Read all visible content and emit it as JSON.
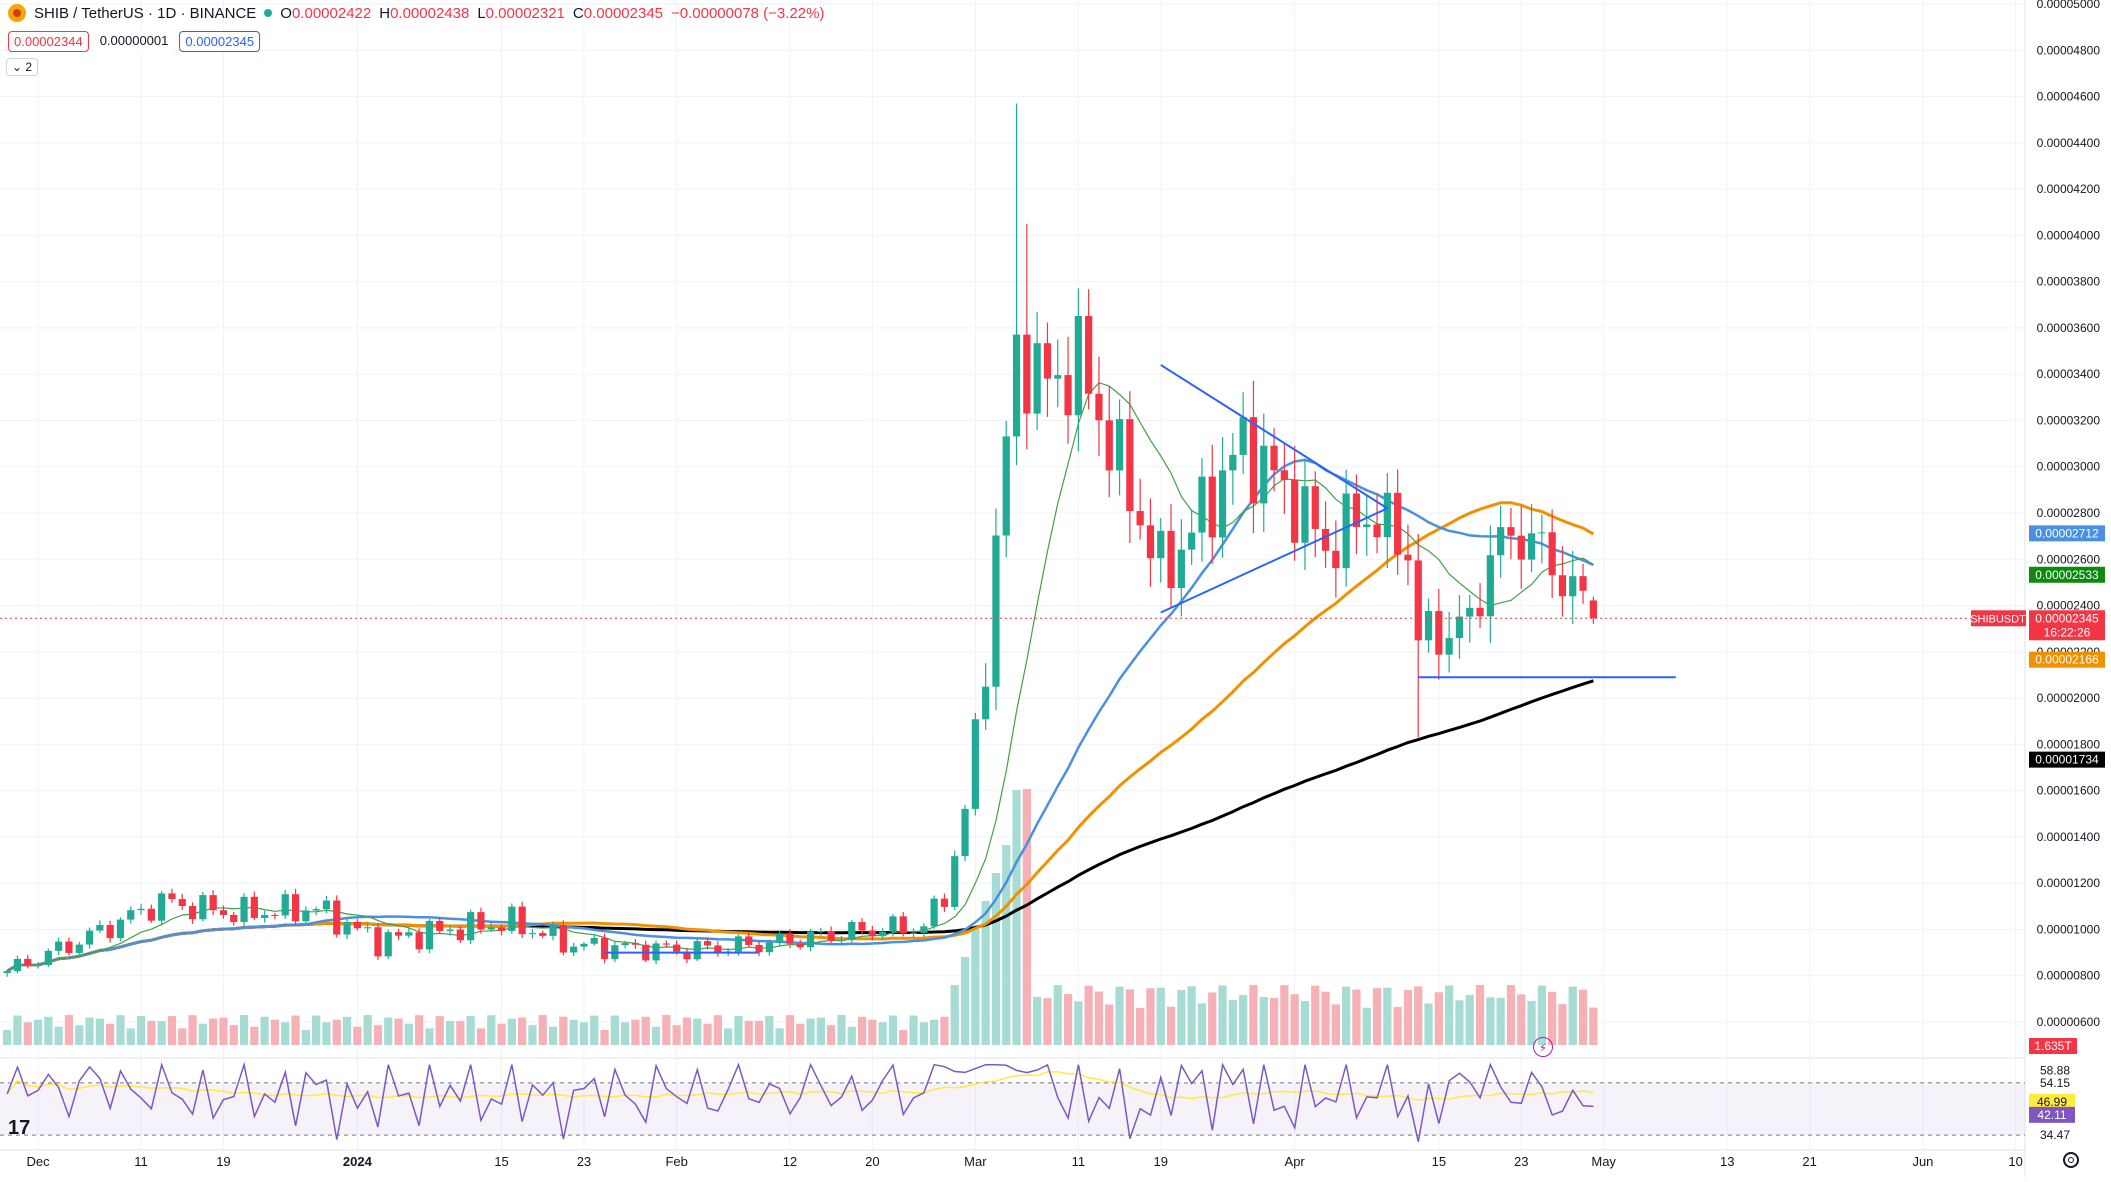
{
  "header": {
    "symbol": "SHIB / TetherUS · 1D · BINANCE",
    "ohlc": {
      "o_label": "O",
      "o": "0.00002422",
      "h_label": "H",
      "h": "0.00002438",
      "l_label": "L",
      "l": "0.00002321",
      "c_label": "C",
      "c": "0.00002345",
      "change": "−0.00000078 (−3.22%)"
    },
    "bid": "0.00002344",
    "spread": "0.00000001",
    "ask": "0.00002345",
    "indicators_toggle": "⌄ 2"
  },
  "chart_data": {
    "type": "candlestick",
    "symbol": "SHIBUSDT",
    "timeframe": "1D",
    "x_ticks": [
      "Dec",
      "11",
      "19",
      "2024",
      "15",
      "23",
      "Feb",
      "12",
      "20",
      "Mar",
      "11",
      "19",
      "Apr",
      "15",
      "23",
      "May",
      "13",
      "21",
      "Jun",
      "10"
    ],
    "y_ticks": [
      "0.00000600",
      "0.00000800",
      "0.00001000",
      "0.00001200",
      "0.00001400",
      "0.00001600",
      "0.00001800",
      "0.00002000",
      "0.00002200",
      "0.00002400",
      "0.00002600",
      "0.00002800",
      "0.00003000",
      "0.00003200",
      "0.00003400",
      "0.00003600",
      "0.00003800",
      "0.00004000",
      "0.00004200",
      "0.00004400",
      "0.00004600",
      "0.00004800",
      "0.00005000"
    ],
    "ylim": [
      4.8e-06,
      5.1e-05
    ],
    "candles_summary": [
      {
        "period": "Dec – mid Feb",
        "range": [
          8.5e-06,
          1.2e-05
        ]
      },
      {
        "period": "late Feb – Mar 5",
        "peak_high": 4.57e-05
      },
      {
        "period": "Mar – Apr 30",
        "last_close": 2.345e-05
      }
    ],
    "price_labels": [
      {
        "name": "ma-blue",
        "value": "0.00002712",
        "color": "#4a90e2"
      },
      {
        "name": "ma-green",
        "value": "0.00002533",
        "color": "#0b8a0b"
      },
      {
        "name": "last-price",
        "value": "0.00002345",
        "color": "#f23645",
        "symbol": "SHIBUSDT",
        "countdown": "16:22:26"
      },
      {
        "name": "ma-orange",
        "value": "0.00002166",
        "color": "#f29100"
      },
      {
        "name": "ma-black",
        "value": "0.00001734",
        "color": "#000000"
      }
    ],
    "overlays": [
      "symmetrical triangle (trend lines)",
      "horizontal support line ~0.0000209"
    ],
    "volume": {
      "last": "1.635T",
      "color": "#f23645"
    },
    "rsi": {
      "ticks": [
        "34.47",
        "54.15",
        "58.88"
      ],
      "values": [
        {
          "value": "46.99",
          "color": "#ffeb3b"
        },
        {
          "value": "42.11",
          "color": "#7e57c2"
        }
      ]
    }
  },
  "colors": {
    "up": "#22ab94",
    "down": "#f23645",
    "ma_green": "#43a047",
    "ma_blue": "#4a90e2",
    "ma_orange": "#f29100",
    "ma_black": "#000000",
    "trend": "#2962ff"
  }
}
